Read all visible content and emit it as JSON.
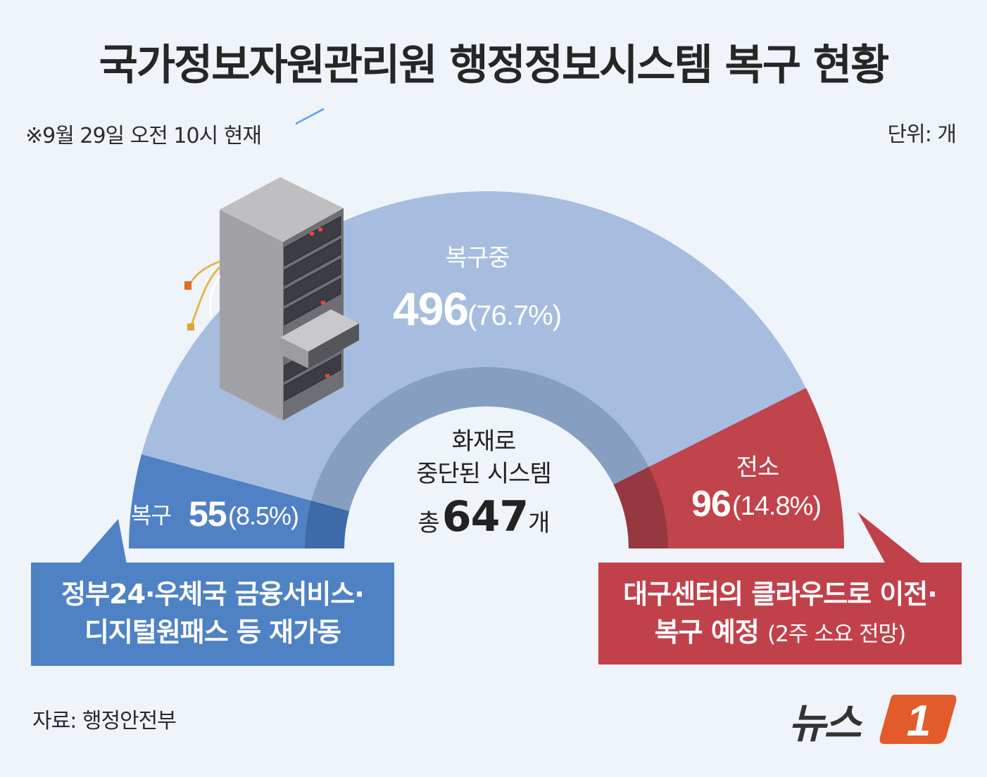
{
  "title": "국가정보자원관리원 행정정보시스템 복구 현황",
  "note": "※9월 29일 오전 10시 현재",
  "unit": "단위: 개",
  "center": {
    "line1": "화재로",
    "line2": "중단된 시스템",
    "total_prefix": "총",
    "total_value": "647",
    "total_suffix": "개"
  },
  "chart_data": {
    "type": "pie",
    "style": "semicircle-donut",
    "total": 647,
    "categories": [
      "복구",
      "복구중",
      "전소"
    ],
    "values": [
      55,
      496,
      96
    ],
    "percents": [
      "8.5%",
      "76.7%",
      "14.8%"
    ],
    "value_labels": [
      "55",
      "496",
      "96"
    ],
    "percent_labels": [
      "(8.5%)",
      "(76.7%)",
      "(14.8%)"
    ],
    "colors": [
      "#5181c5",
      "#a7bddf",
      "#c1434c"
    ]
  },
  "callouts": {
    "blue_line1": "정부24·우체국 금융서비스·",
    "blue_line2": "디지털원패스 등 재가동",
    "red_line1": "대구센터의 클라우드로 이전·",
    "red_line2_main": "복구 예정",
    "red_line2_sub": "(2주 소요 전망)"
  },
  "source": "자료: 행정안전부",
  "logo_text": "뉴스",
  "logo_mark": "1",
  "icons": {
    "illustration": "server-rack-icon"
  }
}
